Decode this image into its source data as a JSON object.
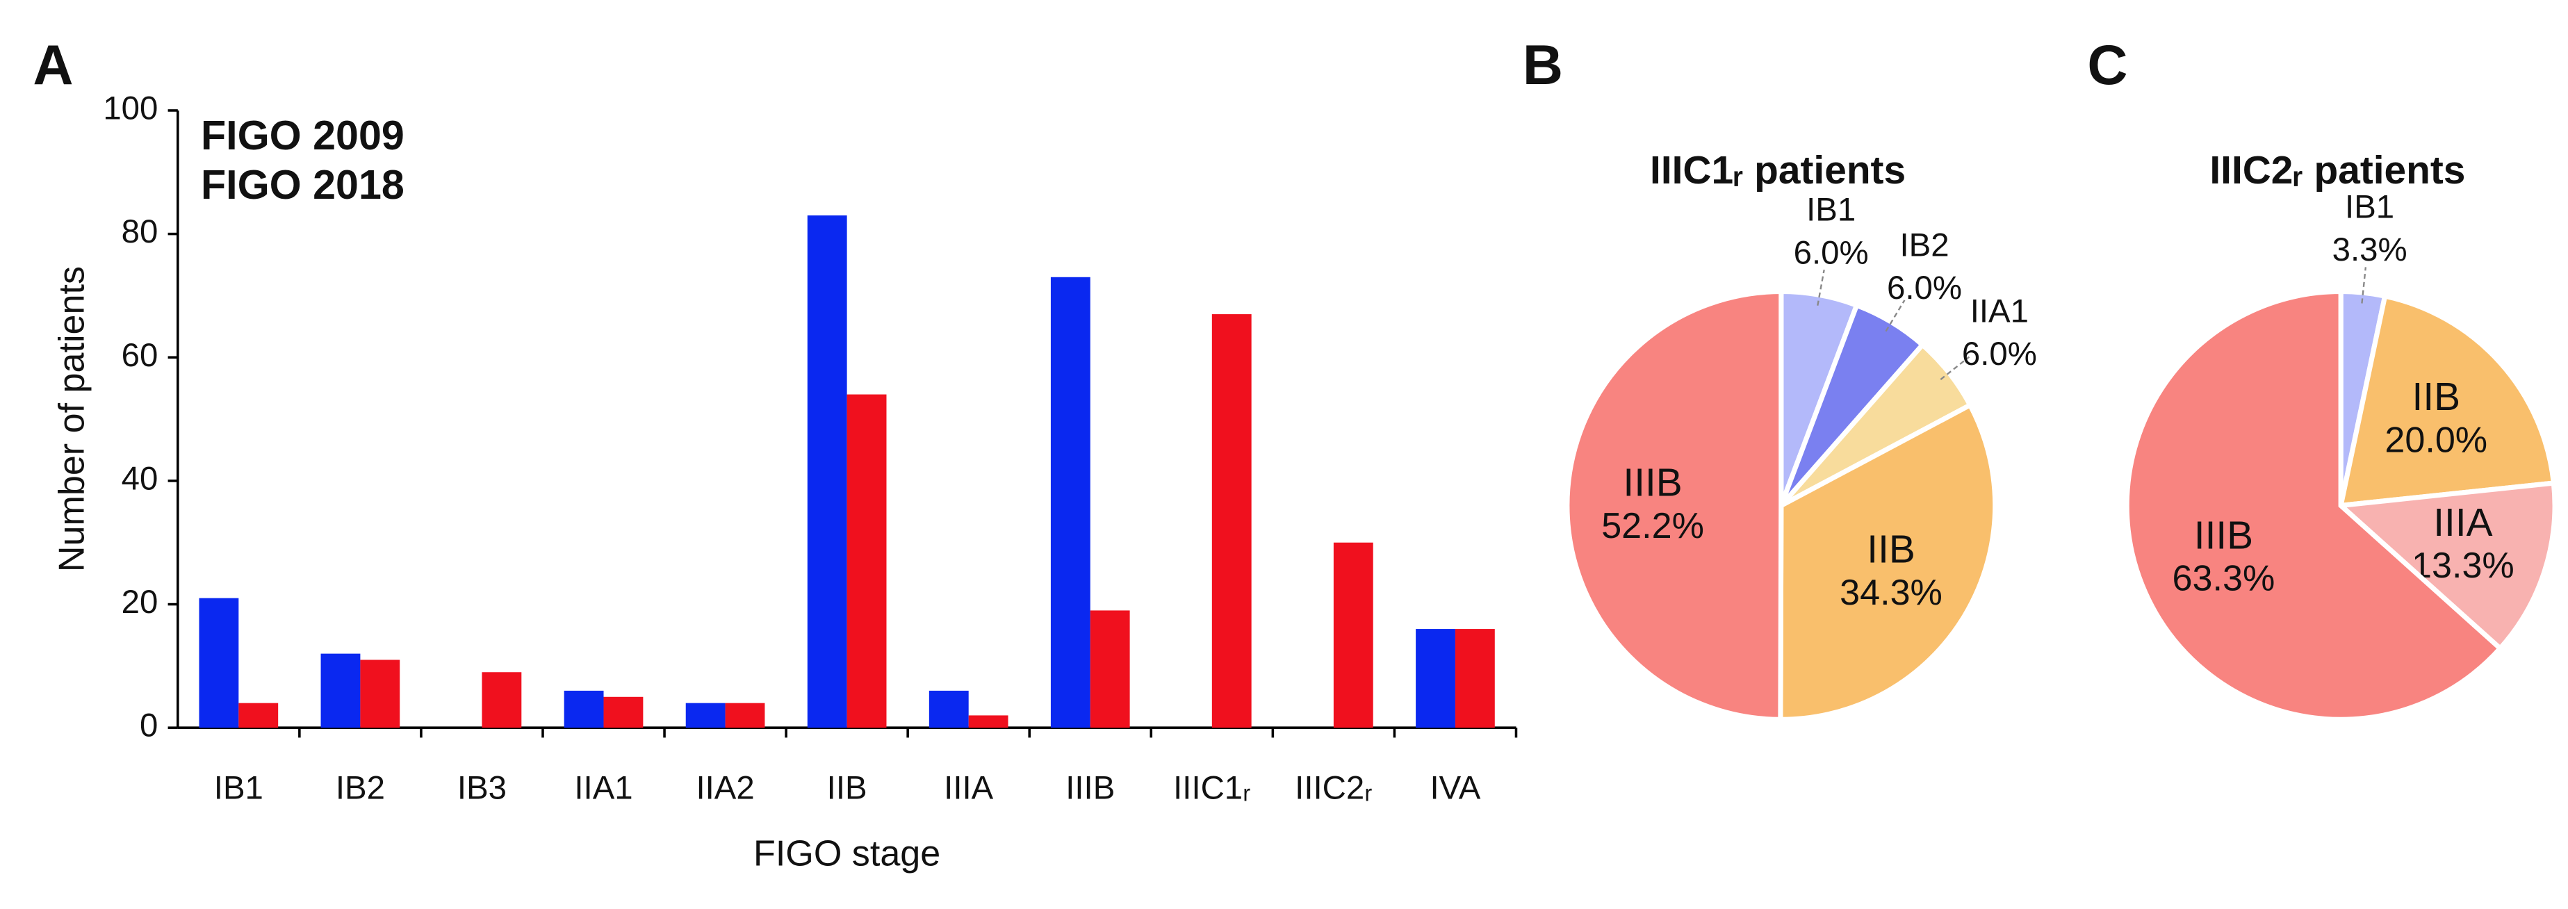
{
  "chart_data": [
    {
      "type": "bar",
      "panel_label": "A",
      "categories": [
        "IB1",
        "IB2",
        "IB3",
        "IIA1",
        "IIA2",
        "IIB",
        "IIIA",
        "IIIB",
        "IIIC1ᵣ",
        "IIIC2ᵣ",
        "IVA"
      ],
      "series": [
        {
          "name": "FIGO 2009",
          "color": "#0a28f0",
          "values": [
            21,
            12,
            0,
            6,
            4,
            83,
            6,
            73,
            0,
            0,
            16
          ]
        },
        {
          "name": "FIGO 2018",
          "color": "#f0101e",
          "values": [
            4,
            11,
            9,
            5,
            4,
            54,
            2,
            19,
            67,
            30,
            16
          ]
        }
      ],
      "x_label": "FIGO stage",
      "y_label": "Number of patients",
      "ylim": [
        0,
        100
      ],
      "yticks": [
        0,
        20,
        40,
        60,
        80,
        100
      ],
      "grid": false,
      "legend": "upper left"
    },
    {
      "type": "pie",
      "panel_label": "B",
      "title": "IIIC1ᵣ patients",
      "categories": [
        "IB1",
        "IB2",
        "IIA1",
        "IIB",
        "IIIB"
      ],
      "values": [
        6.0,
        6.0,
        6.0,
        34.3,
        52.2
      ],
      "value_labels": [
        "6.0%",
        "6.0%",
        "6.0%",
        "34.3%",
        "52.2%"
      ],
      "colors": [
        "#b3b9fa",
        "#7a80f0",
        "#f8dc9c",
        "#f9bf6c",
        "#f88480"
      ]
    },
    {
      "type": "pie",
      "panel_label": "C",
      "title": "IIIC2ᵣ patients",
      "categories": [
        "IB1",
        "IIB",
        "IIIA",
        "IIIB"
      ],
      "values": [
        3.3,
        20.0,
        13.3,
        63.3
      ],
      "value_labels": [
        "3.3%",
        "20.0%",
        "13.3%",
        "63.3%"
      ],
      "colors": [
        "#b3b9fa",
        "#f9bf6c",
        "#f8b2b0",
        "#f88480"
      ]
    }
  ]
}
